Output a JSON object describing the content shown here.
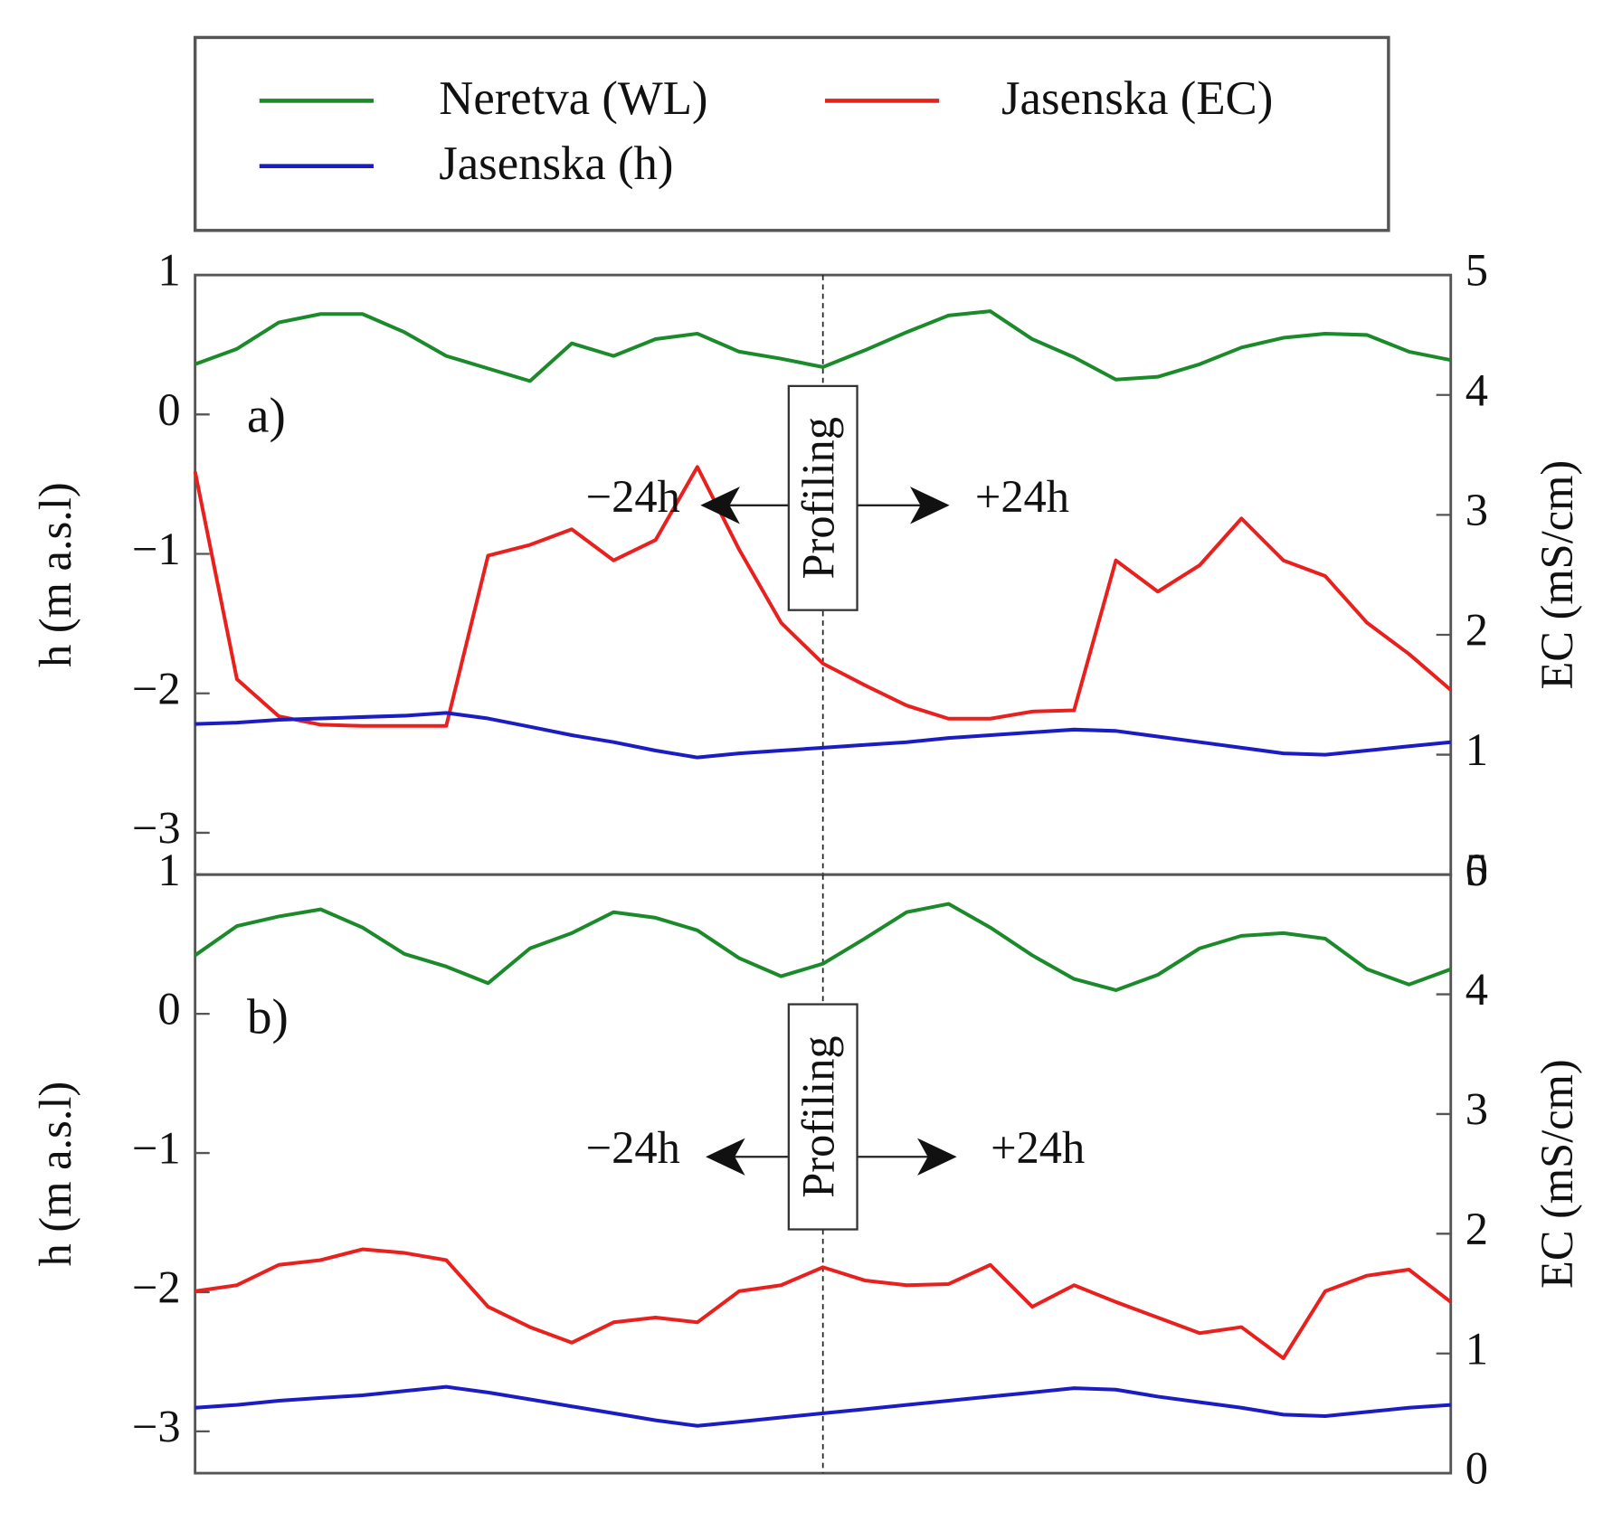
{
  "chart_data": [
    {
      "type": "line",
      "ylabel": "h (m a.s.l)",
      "y2label": "EC (mS/cm)",
      "annotations": {
        "panel": "a)",
        "center": "Profiling",
        "left": "−24h",
        "right": "+24h"
      },
      "ylim": [
        -3.3,
        1
      ],
      "yticks": [
        1,
        0,
        {
          "value": -1,
          "label": "−1"
        },
        {
          "value": -2,
          "label": "−2"
        },
        {
          "value": -3,
          "label": "−3"
        }
      ],
      "y2lim": [
        0,
        5
      ],
      "y2ticks": [
        5,
        4,
        3,
        2,
        1,
        0
      ],
      "series": [
        {
          "name": "Neretva (WL)",
          "color": "#1a8a2a",
          "values": [
            0.36,
            0.47,
            0.66,
            0.72,
            0.72,
            0.59,
            0.42,
            0.33,
            0.24,
            0.51,
            0.42,
            0.54,
            0.58,
            0.45,
            0.4,
            0.34,
            0.46,
            0.59,
            0.71,
            0.74,
            0.54,
            0.41,
            0.25,
            0.27,
            0.36,
            0.48,
            0.55,
            0.58,
            0.57,
            0.45,
            0.39
          ]
        },
        {
          "name": "Jasenska (EC)",
          "color": "#e8201e",
          "axis": "y2",
          "values": [
            3.36,
            1.63,
            1.32,
            1.25,
            1.24,
            1.24,
            1.24,
            2.66,
            2.75,
            2.88,
            2.62,
            2.79,
            3.4,
            2.71,
            2.1,
            1.76,
            1.58,
            1.41,
            1.3,
            1.3,
            1.36,
            1.37,
            2.62,
            2.36,
            2.58,
            2.97,
            2.62,
            2.49,
            2.1,
            1.84,
            1.54
          ]
        },
        {
          "name": "Jasenska (h)",
          "color": "#1c1cc4",
          "values": [
            -2.22,
            -2.21,
            -2.19,
            -2.18,
            -2.17,
            -2.16,
            -2.14,
            -2.18,
            -2.24,
            -2.3,
            -2.35,
            -2.41,
            -2.46,
            -2.43,
            -2.41,
            -2.39,
            -2.37,
            -2.35,
            -2.32,
            -2.3,
            -2.28,
            -2.26,
            -2.27,
            -2.31,
            -2.35,
            -2.39,
            -2.43,
            -2.44,
            -2.41,
            -2.38,
            -2.35
          ]
        }
      ]
    },
    {
      "type": "line",
      "ylabel": "h (m a.s.l)",
      "y2label": "EC (mS/cm)",
      "annotations": {
        "panel": "b)",
        "center": "Profiling",
        "left": "−24h",
        "right": "+24h"
      },
      "ylim": [
        -3.3,
        1
      ],
      "yticks": [
        1,
        0,
        {
          "value": -1,
          "label": "−1"
        },
        {
          "value": -2,
          "label": "−2"
        },
        {
          "value": -3,
          "label": "−3"
        }
      ],
      "y2lim": [
        0,
        5
      ],
      "y2ticks": [
        5,
        4,
        3,
        2,
        1,
        0
      ],
      "series": [
        {
          "color": "#1a8a2a",
          "values": [
            0.42,
            0.63,
            0.7,
            0.75,
            0.62,
            0.43,
            0.34,
            0.22,
            0.47,
            0.58,
            0.73,
            0.69,
            0.6,
            0.4,
            0.27,
            0.36,
            0.54,
            0.73,
            0.79,
            0.62,
            0.42,
            0.25,
            0.17,
            0.28,
            0.47,
            0.56,
            0.58,
            0.54,
            0.32,
            0.21,
            0.32
          ]
        },
        {
          "color": "#e8201e",
          "axis": "y2",
          "values": [
            1.52,
            1.57,
            1.74,
            1.78,
            1.87,
            1.84,
            1.78,
            1.39,
            1.22,
            1.09,
            1.26,
            1.3,
            1.26,
            1.52,
            1.57,
            1.72,
            1.61,
            1.57,
            1.58,
            1.74,
            1.39,
            1.57,
            1.43,
            1.3,
            1.17,
            1.22,
            0.96,
            1.52,
            1.65,
            1.7,
            1.43
          ]
        },
        {
          "color": "#1c1cc4",
          "values": [
            -2.83,
            -2.81,
            -2.78,
            -2.76,
            -2.74,
            -2.71,
            -2.68,
            -2.72,
            -2.77,
            -2.82,
            -2.87,
            -2.92,
            -2.96,
            -2.93,
            -2.9,
            -2.87,
            -2.84,
            -2.81,
            -2.78,
            -2.75,
            -2.72,
            -2.69,
            -2.7,
            -2.75,
            -2.79,
            -2.83,
            -2.88,
            -2.89,
            -2.86,
            -2.83,
            -2.81
          ]
        }
      ]
    }
  ]
}
